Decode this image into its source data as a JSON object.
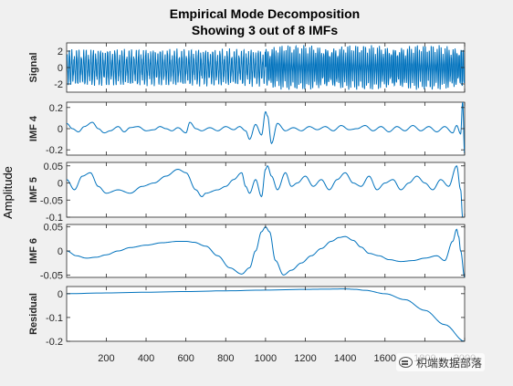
{
  "figure": {
    "title_line1": "Empirical Mode Decomposition",
    "title_line2": "Showing 3 out of 8 IMFs",
    "ylabel": "Amplitude",
    "xticks": [
      200,
      400,
      600,
      800,
      1000,
      1200,
      1400,
      1600,
      1800,
      2000
    ]
  },
  "colors": {
    "trace": "#0072bd",
    "background": "#f0f0f0",
    "axes": "#ffffff"
  },
  "watermark": {
    "text": "枳端数据部落",
    "icon": "chat-bubble-icon"
  },
  "chart_data": [
    {
      "type": "line",
      "name": "Signal",
      "ylabel": "Signal",
      "xlim": [
        1,
        2000
      ],
      "ylim": [
        -3,
        3
      ],
      "yticks": [
        -2,
        0,
        2
      ],
      "ytick_labels": [
        "-2",
        "0",
        "2"
      ],
      "pattern": "oscillatory",
      "amplitude_first_half": 2.1,
      "amplitude_second_half": 2.5,
      "period_first_half": 12,
      "period_second_half": 10
    },
    {
      "type": "line",
      "name": "IMF 4",
      "ylabel": "IMF 4",
      "xlim": [
        1,
        2000
      ],
      "ylim": [
        -0.25,
        0.25
      ],
      "yticks": [
        -0.2,
        0,
        0.2
      ],
      "ytick_labels": [
        "-0.2",
        "0",
        "0.2"
      ],
      "x": [
        1,
        30,
        60,
        90,
        130,
        160,
        190,
        220,
        260,
        290,
        320,
        360,
        400,
        440,
        470,
        500,
        530,
        560,
        600,
        620,
        650,
        680,
        720,
        760,
        800,
        840,
        870,
        900,
        920,
        950,
        980,
        1000,
        1010,
        1030,
        1060,
        1100,
        1140,
        1180,
        1220,
        1260,
        1300,
        1340,
        1380,
        1420,
        1460,
        1500,
        1540,
        1580,
        1620,
        1660,
        1700,
        1740,
        1780,
        1820,
        1860,
        1900,
        1940,
        1960,
        1980,
        1990,
        2000
      ],
      "y": [
        0.05,
        0.0,
        -0.03,
        0.02,
        0.06,
        0.0,
        -0.04,
        -0.02,
        0.02,
        -0.03,
        0.01,
        0.02,
        -0.02,
        -0.01,
        0.02,
        0.0,
        -0.02,
        0.01,
        -0.04,
        0.06,
        0.0,
        -0.02,
        0.01,
        -0.02,
        0.02,
        -0.01,
        0.02,
        -0.02,
        -0.1,
        0.04,
        -0.06,
        0.16,
        0.12,
        -0.14,
        0.05,
        -0.02,
        0.01,
        -0.02,
        0.02,
        -0.01,
        0.02,
        -0.02,
        0.03,
        -0.01,
        0.0,
        0.03,
        -0.02,
        0.02,
        -0.03,
        0.02,
        -0.02,
        0.03,
        -0.02,
        0.02,
        -0.03,
        0.02,
        -0.04,
        0.03,
        -0.05,
        0.25,
        -0.24
      ]
    },
    {
      "type": "line",
      "name": "IMF 5",
      "ylabel": "IMF 5",
      "xlim": [
        1,
        2000
      ],
      "ylim": [
        -0.1,
        0.06
      ],
      "yticks": [
        -0.1,
        -0.05,
        0,
        0.05
      ],
      "ytick_labels": [
        "-0.1",
        "-0.05",
        "0",
        "0.05"
      ],
      "x": [
        1,
        40,
        80,
        120,
        160,
        200,
        260,
        320,
        380,
        440,
        500,
        560,
        600,
        650,
        680,
        700,
        760,
        800,
        840,
        880,
        900,
        920,
        950,
        980,
        1000,
        1010,
        1030,
        1060,
        1100,
        1130,
        1160,
        1200,
        1240,
        1280,
        1320,
        1360,
        1400,
        1440,
        1480,
        1520,
        1560,
        1600,
        1640,
        1680,
        1720,
        1760,
        1800,
        1840,
        1880,
        1920,
        1960,
        1980,
        1990,
        2000
      ],
      "y": [
        0.01,
        -0.02,
        0.02,
        0.03,
        -0.01,
        -0.03,
        -0.02,
        -0.03,
        -0.01,
        0.0,
        0.02,
        0.04,
        0.03,
        -0.02,
        -0.04,
        -0.03,
        -0.02,
        -0.01,
        0.01,
        0.03,
        -0.01,
        -0.03,
        0.01,
        -0.04,
        0.04,
        0.05,
        0.02,
        -0.02,
        0.03,
        -0.01,
        0.0,
        0.02,
        -0.01,
        0.01,
        -0.02,
        0.01,
        0.03,
        0.0,
        -0.01,
        0.02,
        -0.02,
        0.0,
        0.01,
        -0.02,
        0.0,
        0.02,
        0.0,
        -0.02,
        0.01,
        -0.01,
        0.05,
        -0.02,
        -0.1,
        -0.1
      ]
    },
    {
      "type": "line",
      "name": "IMF 6",
      "ylabel": "IMF 6",
      "xlim": [
        1,
        2000
      ],
      "ylim": [
        -0.055,
        0.055
      ],
      "yticks": [
        -0.05,
        0,
        0.05
      ],
      "ytick_labels": [
        "-0.05",
        "0",
        "0.05"
      ],
      "x": [
        1,
        50,
        100,
        150,
        200,
        260,
        320,
        400,
        480,
        560,
        600,
        640,
        700,
        760,
        820,
        880,
        920,
        950,
        980,
        1000,
        1020,
        1050,
        1090,
        1130,
        1180,
        1230,
        1280,
        1330,
        1370,
        1400,
        1440,
        1480,
        1520,
        1570,
        1620,
        1680,
        1740,
        1800,
        1860,
        1900,
        1940,
        1960,
        1970,
        1980,
        2000
      ],
      "y": [
        0.0,
        -0.01,
        -0.015,
        -0.013,
        -0.008,
        0.0,
        0.007,
        0.012,
        0.017,
        0.02,
        0.02,
        0.018,
        0.01,
        -0.01,
        -0.035,
        -0.048,
        -0.035,
        0.0,
        0.04,
        0.05,
        0.04,
        -0.02,
        -0.05,
        -0.04,
        -0.025,
        -0.01,
        0.005,
        0.02,
        0.028,
        0.03,
        0.022,
        0.008,
        -0.005,
        -0.01,
        -0.018,
        -0.022,
        -0.02,
        -0.015,
        -0.01,
        -0.02,
        0.02,
        0.045,
        0.03,
        0.0,
        -0.055
      ]
    },
    {
      "type": "line",
      "name": "Residual",
      "ylabel": "Residual",
      "xlim": [
        1,
        2000
      ],
      "ylim": [
        -0.2,
        0.03
      ],
      "yticks": [
        -0.2,
        -0.1,
        0
      ],
      "ytick_labels": [
        "-0.2",
        "-0.1",
        "0"
      ],
      "x": [
        1,
        200,
        400,
        600,
        800,
        1000,
        1200,
        1300,
        1400,
        1450,
        1500,
        1600,
        1700,
        1800,
        1900,
        2000
      ],
      "y": [
        0.0,
        0.003,
        0.006,
        0.009,
        0.012,
        0.015,
        0.018,
        0.019,
        0.02,
        0.018,
        0.014,
        0.0,
        -0.025,
        -0.07,
        -0.13,
        -0.2
      ]
    }
  ]
}
